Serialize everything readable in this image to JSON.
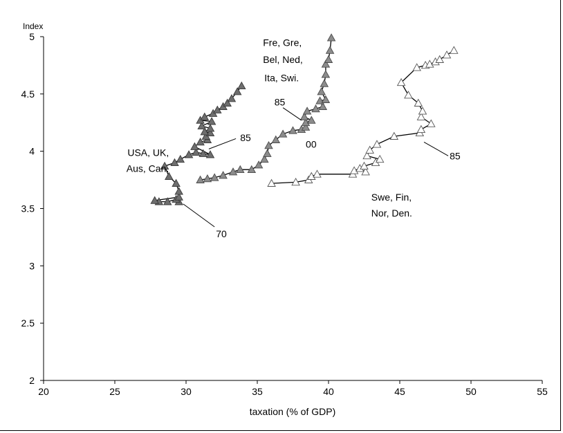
{
  "chart_data": {
    "type": "scatter",
    "title": "",
    "xlabel": "taxation (% of GDP)",
    "ylabel": "Index",
    "xlim": [
      20,
      55
    ],
    "ylim": [
      2,
      5
    ],
    "xticks": [
      "20",
      "25",
      "30",
      "35",
      "40",
      "45",
      "50",
      "55"
    ],
    "yticks": [
      "2",
      "2.5",
      "3",
      "3.5",
      "4",
      "4.5",
      "5"
    ],
    "grid": false,
    "series": [
      {
        "name": "USA, UK, Aus, Can.",
        "marker": "triangle-dark",
        "points": [
          [
            29.5,
            3.56
          ],
          [
            29.3,
            3.58
          ],
          [
            28.7,
            3.56
          ],
          [
            28.1,
            3.56
          ],
          [
            27.8,
            3.57
          ],
          [
            29.5,
            3.6
          ],
          [
            29.5,
            3.65
          ],
          [
            29.3,
            3.72
          ],
          [
            28.8,
            3.78
          ],
          [
            28.5,
            3.87
          ],
          [
            29.2,
            3.9
          ],
          [
            29.6,
            3.93
          ],
          [
            30.2,
            3.97
          ],
          [
            30.7,
            3.99
          ],
          [
            31.2,
            3.98
          ],
          [
            31.7,
            3.97
          ],
          [
            30.6,
            4.04
          ],
          [
            31.0,
            4.08
          ],
          [
            31.5,
            4.1
          ],
          [
            31.4,
            4.13
          ],
          [
            31.7,
            4.16
          ],
          [
            31.3,
            4.17
          ],
          [
            31.7,
            4.2
          ],
          [
            31.1,
            4.22
          ],
          [
            31.8,
            4.26
          ],
          [
            31.0,
            4.27
          ],
          [
            31.3,
            4.3
          ],
          [
            31.9,
            4.33
          ],
          [
            32.2,
            4.36
          ],
          [
            32.6,
            4.39
          ],
          [
            32.9,
            4.42
          ],
          [
            33.2,
            4.46
          ],
          [
            33.6,
            4.52
          ],
          [
            33.9,
            4.57
          ]
        ]
      },
      {
        "name": "Fre, Gre, Bel, Ned, Ita, Swi.",
        "marker": "triangle-medium",
        "points": [
          [
            31.0,
            3.75
          ],
          [
            31.5,
            3.76
          ],
          [
            32.0,
            3.77
          ],
          [
            32.6,
            3.79
          ],
          [
            33.3,
            3.82
          ],
          [
            33.8,
            3.84
          ],
          [
            34.6,
            3.84
          ],
          [
            35.1,
            3.88
          ],
          [
            35.5,
            3.93
          ],
          [
            35.7,
            3.98
          ],
          [
            35.8,
            4.05
          ],
          [
            36.3,
            4.1
          ],
          [
            36.8,
            4.15
          ],
          [
            37.5,
            4.18
          ],
          [
            38.1,
            4.19
          ],
          [
            38.4,
            4.21
          ],
          [
            38.4,
            4.25
          ],
          [
            38.8,
            4.27
          ],
          [
            38.3,
            4.3
          ],
          [
            38.5,
            4.35
          ],
          [
            39.1,
            4.37
          ],
          [
            39.6,
            4.39
          ],
          [
            39.4,
            4.44
          ],
          [
            39.8,
            4.45
          ],
          [
            39.5,
            4.52
          ],
          [
            39.7,
            4.59
          ],
          [
            39.8,
            4.67
          ],
          [
            39.8,
            4.76
          ],
          [
            40.0,
            4.8
          ],
          [
            40.1,
            4.88
          ],
          [
            40.2,
            4.99
          ]
        ]
      },
      {
        "name": "Swe, Fin, Nor, Den.",
        "marker": "triangle-open",
        "points": [
          [
            36.0,
            3.72
          ],
          [
            37.7,
            3.73
          ],
          [
            38.6,
            3.75
          ],
          [
            38.8,
            3.78
          ],
          [
            39.2,
            3.8
          ],
          [
            41.7,
            3.8
          ],
          [
            41.8,
            3.83
          ],
          [
            42.2,
            3.85
          ],
          [
            42.6,
            3.82
          ],
          [
            42.5,
            3.87
          ],
          [
            43.3,
            3.9
          ],
          [
            43.6,
            3.93
          ],
          [
            42.7,
            3.96
          ],
          [
            42.9,
            4.01
          ],
          [
            43.4,
            4.06
          ],
          [
            44.6,
            4.13
          ],
          [
            46.4,
            4.16
          ],
          [
            46.5,
            4.19
          ],
          [
            47.2,
            4.24
          ],
          [
            46.5,
            4.3
          ],
          [
            46.6,
            4.35
          ],
          [
            46.3,
            4.42
          ],
          [
            45.6,
            4.49
          ],
          [
            45.1,
            4.6
          ],
          [
            46.2,
            4.73
          ],
          [
            46.8,
            4.75
          ],
          [
            47.1,
            4.76
          ],
          [
            47.5,
            4.78
          ],
          [
            47.8,
            4.8
          ],
          [
            48.3,
            4.84
          ],
          [
            48.8,
            4.88
          ]
        ]
      }
    ],
    "annotations": [
      {
        "text": "USA, UK,",
        "x": 28.8,
        "y": 3.96,
        "anchor": "end"
      },
      {
        "text": "Aus, Can.",
        "x": 28.8,
        "y": 3.82,
        "anchor": "end"
      },
      {
        "text": "85",
        "x": 33.8,
        "y": 4.09,
        "anchor": "start"
      },
      {
        "text": "70",
        "x": 32.1,
        "y": 3.25,
        "anchor": "start"
      },
      {
        "text": "Fre, Gre,",
        "x": 35.4,
        "y": 4.92,
        "anchor": "start"
      },
      {
        "text": "Bel, Ned,",
        "x": 35.4,
        "y": 4.77,
        "anchor": "start"
      },
      {
        "text": "Ita, Swi.",
        "x": 35.5,
        "y": 4.61,
        "anchor": "start"
      },
      {
        "text": "85",
        "x": 36.2,
        "y": 4.4,
        "anchor": "start"
      },
      {
        "text": "00",
        "x": 38.4,
        "y": 4.03,
        "anchor": "start"
      },
      {
        "text": "85",
        "x": 48.5,
        "y": 3.93,
        "anchor": "start"
      },
      {
        "text": "Swe, Fin,",
        "x": 43.0,
        "y": 3.57,
        "anchor": "start"
      },
      {
        "text": "Nor, Den.",
        "x": 43.0,
        "y": 3.43,
        "anchor": "start"
      }
    ],
    "leaders": [
      {
        "from": [
          31.6,
          4.02
        ],
        "to": [
          33.5,
          4.11
        ]
      },
      {
        "from": [
          29.8,
          3.54
        ],
        "to": [
          32.0,
          3.34
        ]
      },
      {
        "from": [
          36.8,
          4.38
        ],
        "to": [
          38.1,
          4.27
        ]
      },
      {
        "from": [
          46.7,
          4.08
        ],
        "to": [
          48.4,
          3.96
        ]
      }
    ]
  }
}
